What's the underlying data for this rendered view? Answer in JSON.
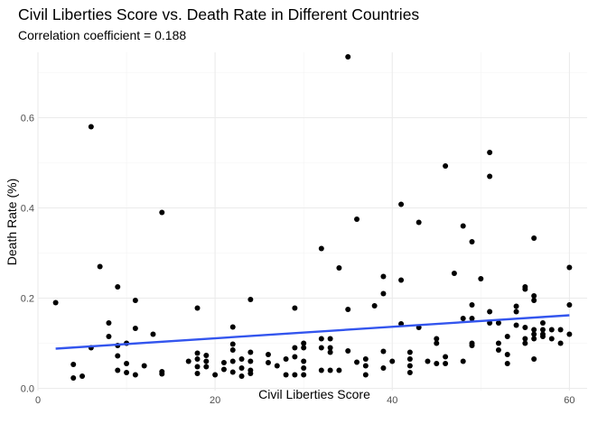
{
  "chart_data": {
    "type": "scatter",
    "title": "Civil Liberties Score vs. Death Rate in Different Countries",
    "subtitle": "Correlation coefficient = 0.188",
    "xlabel": "Civil Liberties Score",
    "ylabel": "Death Rate (%)",
    "xlim": [
      0,
      62
    ],
    "ylim": [
      -0.005,
      0.745
    ],
    "xticks": [
      0,
      20,
      40,
      60
    ],
    "yticks": [
      0.0,
      0.2,
      0.4,
      0.6
    ],
    "xtick_labels": [
      "0",
      "20",
      "40",
      "60"
    ],
    "ytick_labels": [
      "0.0",
      "0.2",
      "0.4",
      "0.6"
    ],
    "grid": true,
    "point_color": "#000000",
    "trend_color": "#3355ee",
    "trend_line": {
      "x": [
        2,
        60
      ],
      "y": [
        0.088,
        0.162
      ]
    },
    "points": [
      [
        2,
        0.19
      ],
      [
        4,
        0.023
      ],
      [
        4,
        0.053
      ],
      [
        5,
        0.027
      ],
      [
        6,
        0.58
      ],
      [
        6,
        0.09
      ],
      [
        7,
        0.27
      ],
      [
        8,
        0.145
      ],
      [
        8,
        0.115
      ],
      [
        9,
        0.225
      ],
      [
        9,
        0.095
      ],
      [
        9,
        0.04
      ],
      [
        9,
        0.072
      ],
      [
        10,
        0.1
      ],
      [
        10,
        0.055
      ],
      [
        10,
        0.035
      ],
      [
        11,
        0.195
      ],
      [
        11,
        0.133
      ],
      [
        11,
        0.03
      ],
      [
        12,
        0.05
      ],
      [
        13,
        0.12
      ],
      [
        14,
        0.39
      ],
      [
        14,
        0.037
      ],
      [
        14,
        0.032
      ],
      [
        17,
        0.06
      ],
      [
        18,
        0.178
      ],
      [
        18,
        0.078
      ],
      [
        18,
        0.065
      ],
      [
        18,
        0.048
      ],
      [
        18,
        0.033
      ],
      [
        19,
        0.073
      ],
      [
        19,
        0.06
      ],
      [
        19,
        0.048
      ],
      [
        20,
        0.03
      ],
      [
        21,
        0.057
      ],
      [
        21,
        0.042
      ],
      [
        22,
        0.136
      ],
      [
        22,
        0.098
      ],
      [
        22,
        0.085
      ],
      [
        22,
        0.06
      ],
      [
        22,
        0.036
      ],
      [
        23,
        0.065
      ],
      [
        23,
        0.045
      ],
      [
        23,
        0.027
      ],
      [
        24,
        0.197
      ],
      [
        24,
        0.08
      ],
      [
        24,
        0.06
      ],
      [
        24,
        0.04
      ],
      [
        24,
        0.033
      ],
      [
        26,
        0.075
      ],
      [
        26,
        0.057
      ],
      [
        27,
        0.05
      ],
      [
        28,
        0.065
      ],
      [
        28,
        0.03
      ],
      [
        29,
        0.178
      ],
      [
        29,
        0.09
      ],
      [
        29,
        0.07
      ],
      [
        29,
        0.03
      ],
      [
        30,
        0.1
      ],
      [
        30,
        0.09
      ],
      [
        30,
        0.06
      ],
      [
        30,
        0.045
      ],
      [
        30,
        0.03
      ],
      [
        32,
        0.31
      ],
      [
        32,
        0.11
      ],
      [
        32,
        0.09
      ],
      [
        32,
        0.04
      ],
      [
        33,
        0.11
      ],
      [
        33,
        0.09
      ],
      [
        33,
        0.08
      ],
      [
        33,
        0.04
      ],
      [
        34,
        0.267
      ],
      [
        34,
        0.04
      ],
      [
        35,
        0.735
      ],
      [
        35,
        0.175
      ],
      [
        35,
        0.083
      ],
      [
        36,
        0.375
      ],
      [
        36,
        0.058
      ],
      [
        37,
        0.065
      ],
      [
        37,
        0.05
      ],
      [
        37,
        0.03
      ],
      [
        38,
        0.183
      ],
      [
        39,
        0.248
      ],
      [
        39,
        0.21
      ],
      [
        39,
        0.082
      ],
      [
        39,
        0.045
      ],
      [
        40,
        0.06
      ],
      [
        41,
        0.408
      ],
      [
        41,
        0.24
      ],
      [
        41,
        0.143
      ],
      [
        42,
        0.08
      ],
      [
        42,
        0.065
      ],
      [
        42,
        0.05
      ],
      [
        42,
        0.035
      ],
      [
        43,
        0.368
      ],
      [
        43,
        0.135
      ],
      [
        44,
        0.06
      ],
      [
        45,
        0.11
      ],
      [
        45,
        0.1
      ],
      [
        45,
        0.055
      ],
      [
        46,
        0.493
      ],
      [
        46,
        0.07
      ],
      [
        46,
        0.055
      ],
      [
        47,
        0.255
      ],
      [
        48,
        0.36
      ],
      [
        48,
        0.155
      ],
      [
        48,
        0.06
      ],
      [
        49,
        0.325
      ],
      [
        49,
        0.185
      ],
      [
        49,
        0.155
      ],
      [
        49,
        0.1
      ],
      [
        49,
        0.095
      ],
      [
        50,
        0.243
      ],
      [
        51,
        0.523
      ],
      [
        51,
        0.47
      ],
      [
        51,
        0.17
      ],
      [
        51,
        0.145
      ],
      [
        52,
        0.145
      ],
      [
        52,
        0.1
      ],
      [
        52,
        0.085
      ],
      [
        53,
        0.115
      ],
      [
        53,
        0.075
      ],
      [
        53,
        0.055
      ],
      [
        54,
        0.182
      ],
      [
        54,
        0.17
      ],
      [
        54,
        0.14
      ],
      [
        55,
        0.225
      ],
      [
        55,
        0.22
      ],
      [
        55,
        0.135
      ],
      [
        55,
        0.11
      ],
      [
        55,
        0.1
      ],
      [
        56,
        0.333
      ],
      [
        56,
        0.205
      ],
      [
        56,
        0.195
      ],
      [
        56,
        0.13
      ],
      [
        56,
        0.12
      ],
      [
        56,
        0.11
      ],
      [
        56,
        0.065
      ],
      [
        57,
        0.145
      ],
      [
        57,
        0.13
      ],
      [
        57,
        0.12
      ],
      [
        57,
        0.115
      ],
      [
        58,
        0.13
      ],
      [
        58,
        0.11
      ],
      [
        59,
        0.13
      ],
      [
        59,
        0.1
      ],
      [
        60,
        0.268
      ],
      [
        60,
        0.185
      ],
      [
        60,
        0.12
      ]
    ]
  }
}
